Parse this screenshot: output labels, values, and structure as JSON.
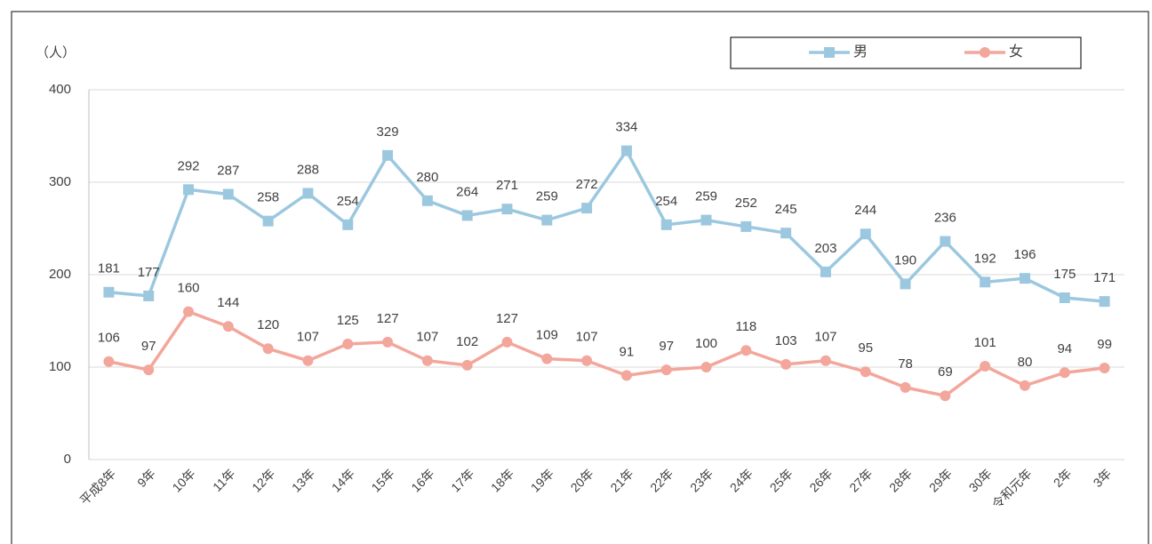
{
  "chart_data": {
    "type": "line",
    "y_unit": "（人）",
    "categories": [
      "平成8年",
      "9年",
      "10年",
      "11年",
      "12年",
      "13年",
      "14年",
      "15年",
      "16年",
      "17年",
      "18年",
      "19年",
      "20年",
      "21年",
      "22年",
      "23年",
      "24年",
      "25年",
      "26年",
      "27年",
      "28年",
      "29年",
      "30年",
      "令和元年",
      "2年",
      "3年"
    ],
    "series": [
      {
        "name": "男",
        "color": "#9cc8df",
        "marker": "square",
        "values": [
          181,
          177,
          292,
          287,
          258,
          288,
          254,
          329,
          280,
          264,
          271,
          259,
          272,
          334,
          254,
          259,
          252,
          245,
          203,
          244,
          190,
          236,
          192,
          196,
          175,
          171
        ]
      },
      {
        "name": "女",
        "color": "#f3a69b",
        "marker": "circle",
        "values": [
          106,
          97,
          160,
          144,
          120,
          107,
          125,
          127,
          107,
          102,
          127,
          109,
          107,
          91,
          97,
          100,
          118,
          103,
          107,
          95,
          78,
          69,
          101,
          80,
          94,
          99
        ]
      }
    ],
    "ylim": [
      0,
      400
    ],
    "yticks": [
      0,
      100,
      200,
      300,
      400
    ],
    "grid": true,
    "legend": "top-right"
  }
}
